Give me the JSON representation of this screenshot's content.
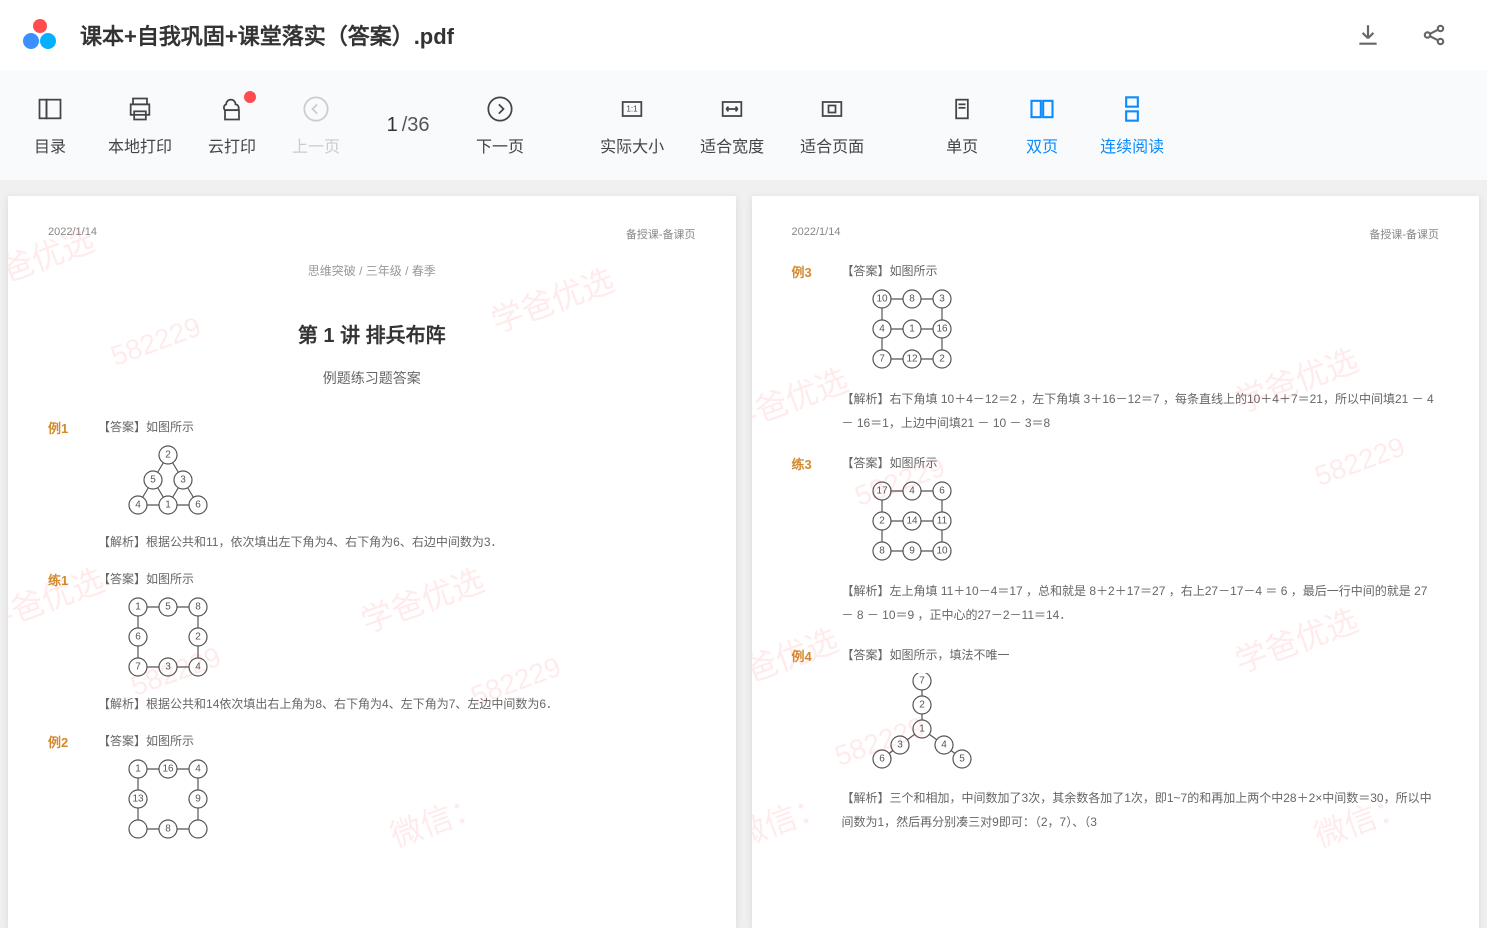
{
  "header": {
    "filename": "课本+自我巩固+课堂落实（答案）.pdf"
  },
  "toolbar": {
    "toc": "目录",
    "local_print": "本地打印",
    "cloud_print": "云打印",
    "prev_page": "上一页",
    "next_page": "下一页",
    "actual_size": "实际大小",
    "fit_width": "适合宽度",
    "fit_page": "适合页面",
    "single_page": "单页",
    "double_page": "双页",
    "continuous": "连续阅读",
    "page_current": "1",
    "page_total": "36"
  },
  "page1": {
    "date": "2022/1/14",
    "header_right": "备授课-备课页",
    "breadcrumb": "思维突破 / 三年级 / 春季",
    "lesson_title": "第 1 讲  排兵布阵",
    "subtitle": "例题练习题答案",
    "li1_label": "例1",
    "li1_ans_tag": "【答案】",
    "li1_ans": "如图所示",
    "li1_analysis_tag": "【解析】",
    "li1_analysis": "根据公共和11，依次填出左下角为4、右下角为6、右边中间数为3．",
    "lian1_label": "练1",
    "lian1_ans_tag": "【答案】",
    "lian1_ans": "如图所示",
    "lian1_analysis_tag": "【解析】",
    "lian1_analysis": "根据公共和14依次填出右上角为8、右下角为4、左下角为7、左边中间数为6．",
    "li2_label": "例2",
    "li2_ans_tag": "【答案】",
    "li2_ans": "如图所示"
  },
  "page2": {
    "date": "2022/1/14",
    "header_right": "备授课-备课页",
    "li3_label": "例3",
    "li3_ans_tag": "【答案】",
    "li3_ans": "如图所示",
    "li3_analysis_tag": "【解析】",
    "li3_analysis": "右下角填 10＋4－12＝2 ，左下角填 3＋16－12＝7 ，每条直线上的10＋4＋7＝21，所以中间填21 － 4 － 16＝1，上边中间填21 － 10 － 3＝8",
    "lian3_label": "练3",
    "lian3_ans_tag": "【答案】",
    "lian3_ans": "如图所示",
    "lian3_analysis_tag": "【解析】",
    "lian3_analysis": "左上角填 11＋10－4＝17 ，总和就是 8＋2＋17＝27 ，右上27－17－4 ＝ 6 ，最后一行中间的就是 27 － 8 － 10＝9 ，正中心的27－2－11＝14．",
    "li4_label": "例4",
    "li4_ans_tag": "【答案】",
    "li4_ans": "如图所示，填法不唯一",
    "li4_analysis_tag": "【解析】",
    "li4_analysis": "三个和相加，中间数加了3次，其余数各加了1次，即1~7的和再加上两个中28＋2×中间数＝30，所以中间数为1，然后再分别凑三对9即可：（2，7）、（3"
  },
  "diagrams": {
    "triangle1": {
      "nodes": [
        [
          40,
          10,
          "2"
        ],
        [
          25,
          35,
          "5"
        ],
        [
          55,
          35,
          "3"
        ],
        [
          10,
          60,
          "4"
        ],
        [
          40,
          60,
          "1"
        ],
        [
          70,
          60,
          "6"
        ]
      ],
      "edges": [
        [
          0,
          1
        ],
        [
          0,
          2
        ],
        [
          1,
          3
        ],
        [
          1,
          4
        ],
        [
          2,
          4
        ],
        [
          2,
          5
        ],
        [
          3,
          4
        ],
        [
          4,
          5
        ]
      ]
    },
    "grid1": {
      "nodes": [
        [
          10,
          10,
          "1"
        ],
        [
          40,
          10,
          "5"
        ],
        [
          70,
          10,
          "8"
        ],
        [
          10,
          40,
          "6"
        ],
        [
          70,
          40,
          "2"
        ],
        [
          10,
          70,
          "7"
        ],
        [
          40,
          70,
          "3"
        ],
        [
          70,
          70,
          "4"
        ]
      ],
      "edges": [
        [
          0,
          1
        ],
        [
          1,
          2
        ],
        [
          0,
          3
        ],
        [
          2,
          4
        ],
        [
          3,
          5
        ],
        [
          4,
          7
        ],
        [
          5,
          6
        ],
        [
          6,
          7
        ]
      ]
    },
    "grid2": {
      "nodes": [
        [
          10,
          10,
          "1"
        ],
        [
          40,
          10,
          "16"
        ],
        [
          70,
          10,
          "4"
        ],
        [
          10,
          40,
          "13"
        ],
        [
          70,
          40,
          "9"
        ],
        [
          10,
          70,
          ""
        ],
        [
          40,
          70,
          "8"
        ],
        [
          70,
          70,
          ""
        ]
      ],
      "edges": [
        [
          0,
          1
        ],
        [
          1,
          2
        ],
        [
          0,
          3
        ],
        [
          2,
          4
        ],
        [
          3,
          5
        ],
        [
          4,
          7
        ],
        [
          5,
          6
        ],
        [
          6,
          7
        ]
      ]
    },
    "grid3": {
      "nodes": [
        [
          10,
          10,
          "10"
        ],
        [
          40,
          10,
          "8"
        ],
        [
          70,
          10,
          "3"
        ],
        [
          10,
          40,
          "4"
        ],
        [
          40,
          40,
          "1"
        ],
        [
          70,
          40,
          "16"
        ],
        [
          10,
          70,
          "7"
        ],
        [
          40,
          70,
          "12"
        ],
        [
          70,
          70,
          "2"
        ]
      ],
      "edges": [
        [
          0,
          1
        ],
        [
          1,
          2
        ],
        [
          0,
          3
        ],
        [
          3,
          4
        ],
        [
          4,
          5
        ],
        [
          2,
          5
        ],
        [
          3,
          6
        ],
        [
          6,
          7
        ],
        [
          7,
          8
        ],
        [
          5,
          8
        ]
      ]
    },
    "grid4": {
      "nodes": [
        [
          10,
          10,
          "17"
        ],
        [
          40,
          10,
          "4"
        ],
        [
          70,
          10,
          "6"
        ],
        [
          10,
          40,
          "2"
        ],
        [
          40,
          40,
          "14"
        ],
        [
          70,
          40,
          "11"
        ],
        [
          10,
          70,
          "8"
        ],
        [
          40,
          70,
          "9"
        ],
        [
          70,
          70,
          "10"
        ]
      ],
      "edges": [
        [
          0,
          1
        ],
        [
          1,
          2
        ],
        [
          0,
          3
        ],
        [
          3,
          4
        ],
        [
          4,
          5
        ],
        [
          2,
          5
        ],
        [
          3,
          6
        ],
        [
          6,
          7
        ],
        [
          7,
          8
        ],
        [
          5,
          8
        ]
      ]
    },
    "star": {
      "nodes": [
        [
          50,
          8,
          "7"
        ],
        [
          50,
          32,
          "2"
        ],
        [
          50,
          56,
          "1"
        ],
        [
          28,
          72,
          "3"
        ],
        [
          72,
          72,
          "4"
        ],
        [
          10,
          86,
          "6"
        ],
        [
          90,
          86,
          "5"
        ]
      ],
      "edges": [
        [
          0,
          1
        ],
        [
          1,
          2
        ],
        [
          2,
          3
        ],
        [
          2,
          4
        ],
        [
          3,
          5
        ],
        [
          4,
          6
        ]
      ]
    }
  },
  "watermarks": {
    "text": "学爸优选",
    "wechat": "微信：",
    "number": "582229"
  },
  "colors": {
    "primary": "#0b8bff",
    "problem_label": "#d48a2e",
    "notif": "#ff4d4f",
    "watermark": "rgba(255,0,0,0.08)"
  }
}
